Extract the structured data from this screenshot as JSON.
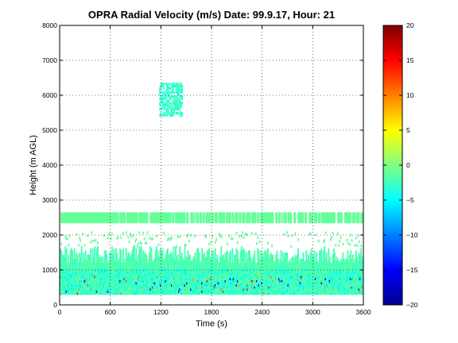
{
  "chart_data": {
    "type": "heatmap",
    "title": "OPRA Radial Velocity (m/s)  Date: 99.9.17, Hour: 21",
    "xlabel": "Time (s)",
    "ylabel": "Height (m AGL)",
    "xlim": [
      0,
      3600
    ],
    "ylim": [
      0,
      8000
    ],
    "x_ticks": [
      0,
      600,
      1200,
      1800,
      2400,
      3000,
      3600
    ],
    "y_ticks": [
      0,
      1000,
      2000,
      3000,
      4000,
      5000,
      6000,
      7000,
      8000
    ],
    "grid": true,
    "colorbar": {
      "range": [
        -20,
        20
      ],
      "ticks": [
        20,
        15,
        10,
        5,
        0,
        -5,
        -10,
        -15,
        -20
      ],
      "tick_labels": [
        "20",
        "15",
        "10",
        "5",
        "0",
        "−5",
        "−10",
        "−15",
        "−20"
      ],
      "colormap": "jet"
    },
    "regions": [
      {
        "name": "near-surface layer",
        "x_range": [
          0,
          3600
        ],
        "height_range": [
          300,
          1650
        ],
        "typical_velocity": -2
      },
      {
        "name": "upper layer",
        "x_range": [
          0,
          3600
        ],
        "height_range": [
          2350,
          2600
        ],
        "typical_velocity": -1
      },
      {
        "name": "patch",
        "x_range": [
          1180,
          1450
        ],
        "height_range": [
          5400,
          6350
        ],
        "typical_velocity": -3
      }
    ]
  },
  "colors": {
    "background": "#ffffff",
    "axes_border": "#000000",
    "grid": "#000000",
    "dominant_echo": "#8ff48a",
    "cyan_echo": "#40f0e8"
  }
}
